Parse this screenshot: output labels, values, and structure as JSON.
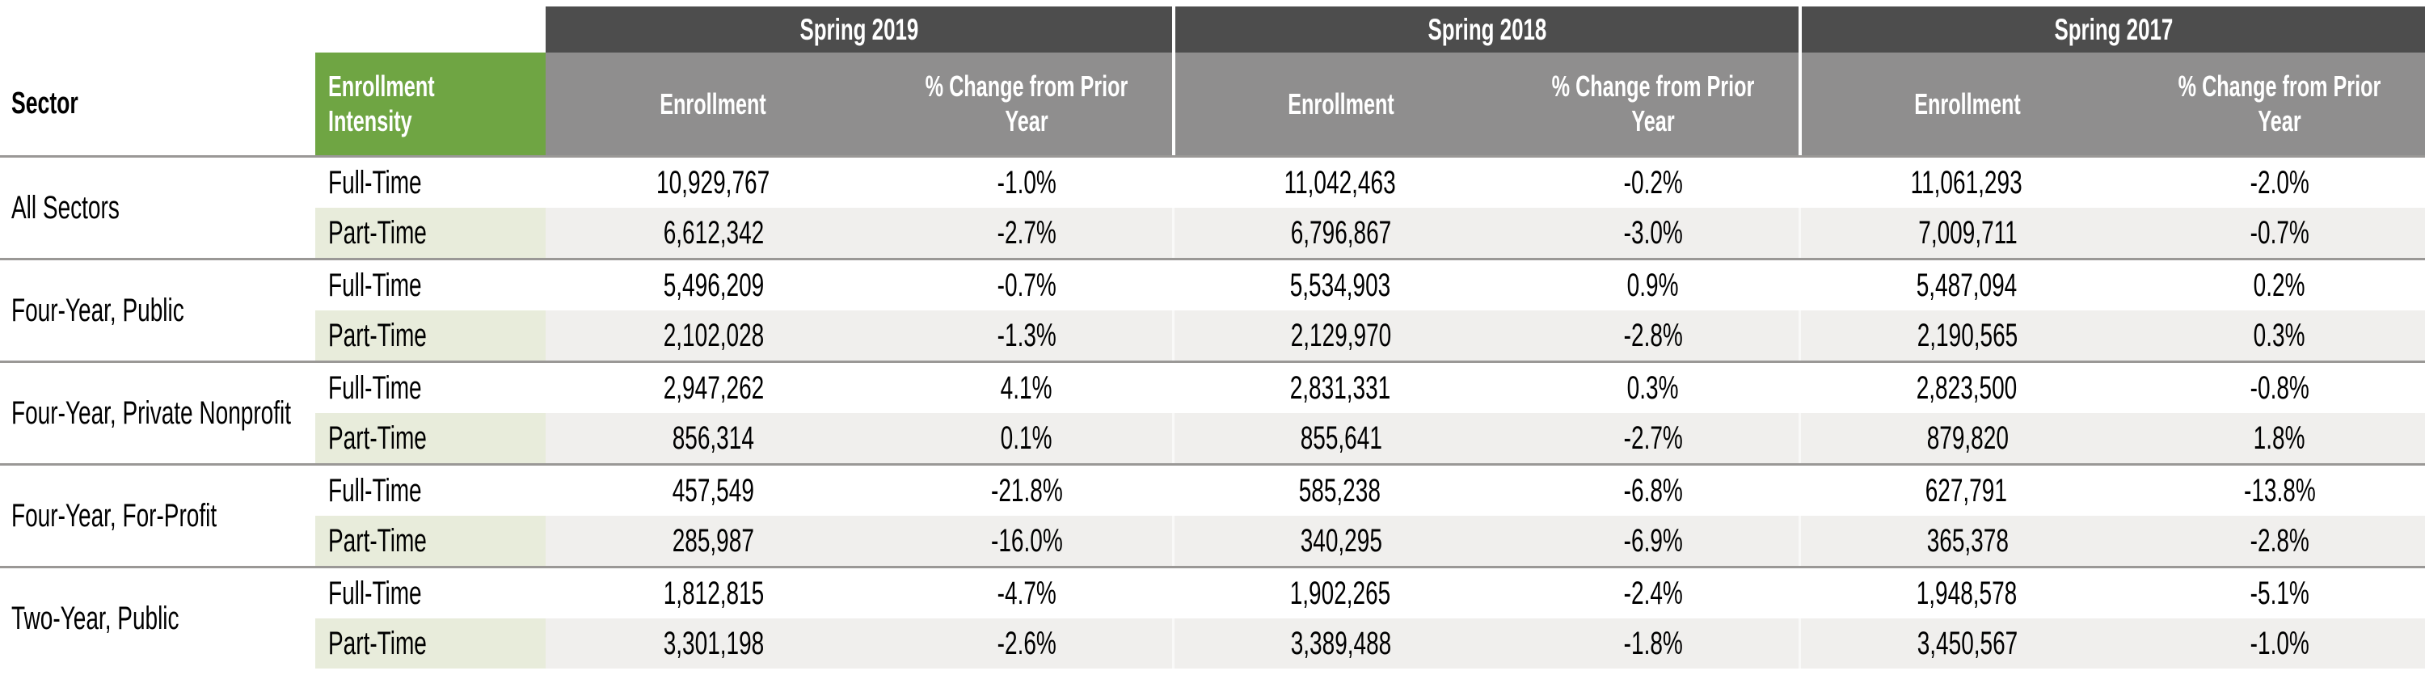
{
  "chart_data": {
    "type": "table",
    "col_headers": {
      "sector": "Sector",
      "intensity": "Enrollment Intensity",
      "years": [
        "Spring 2019",
        "Spring 2018",
        "Spring 2017"
      ],
      "enrollment": "Enrollment",
      "pct_change": "% Change from Prior Year"
    },
    "sectors": [
      {
        "name": "All Sectors",
        "full_time": {
          "label": "Full-Time",
          "values": [
            "10,929,767",
            "-1.0%",
            "11,042,463",
            "-0.2%",
            "11,061,293",
            "-2.0%"
          ]
        },
        "part_time": {
          "label": "Part-Time",
          "values": [
            "6,612,342",
            "-2.7%",
            "6,796,867",
            "-3.0%",
            "7,009,711",
            "-0.7%"
          ]
        }
      },
      {
        "name": "Four-Year, Public",
        "full_time": {
          "label": "Full-Time",
          "values": [
            "5,496,209",
            "-0.7%",
            "5,534,903",
            "0.9%",
            "5,487,094",
            "0.2%"
          ]
        },
        "part_time": {
          "label": "Part-Time",
          "values": [
            "2,102,028",
            "-1.3%",
            "2,129,970",
            "-2.8%",
            "2,190,565",
            "0.3%"
          ]
        }
      },
      {
        "name": "Four-Year, Private Nonprofit",
        "full_time": {
          "label": "Full-Time",
          "values": [
            "2,947,262",
            "4.1%",
            "2,831,331",
            "0.3%",
            "2,823,500",
            "-0.8%"
          ]
        },
        "part_time": {
          "label": "Part-Time",
          "values": [
            "856,314",
            "0.1%",
            "855,641",
            "-2.7%",
            "879,820",
            "1.8%"
          ]
        }
      },
      {
        "name": "Four-Year, For-Profit",
        "full_time": {
          "label": "Full-Time",
          "values": [
            "457,549",
            "-21.8%",
            "585,238",
            "-6.8%",
            "627,791",
            "-13.8%"
          ]
        },
        "part_time": {
          "label": "Part-Time",
          "values": [
            "285,987",
            "-16.0%",
            "340,295",
            "-6.9%",
            "365,378",
            "-2.8%"
          ]
        }
      },
      {
        "name": "Two-Year, Public",
        "full_time": {
          "label": "Full-Time",
          "values": [
            "1,812,815",
            "-4.7%",
            "1,902,265",
            "-2.4%",
            "1,948,578",
            "-5.1%"
          ]
        },
        "part_time": {
          "label": "Part-Time",
          "values": [
            "3,301,198",
            "-2.6%",
            "3,389,488",
            "-1.8%",
            "3,450,567",
            "-1.0%"
          ]
        }
      }
    ],
    "layout": {
      "header_rows": 2,
      "subcolumns_per_year": 2,
      "grid": false,
      "part_time_rows_striped": true
    }
  },
  "colors": {
    "year_band": "#4D4D4D",
    "subheader_band": "#8F8E8E",
    "intensity_header_green": "#6FA543",
    "part_time_intensity_bg": "#E8ECDB",
    "part_time_row_bg": "#F0EFED",
    "separator_line": "#9A9896",
    "header_text": "#FFFFFF",
    "body_text": "#000000"
  }
}
